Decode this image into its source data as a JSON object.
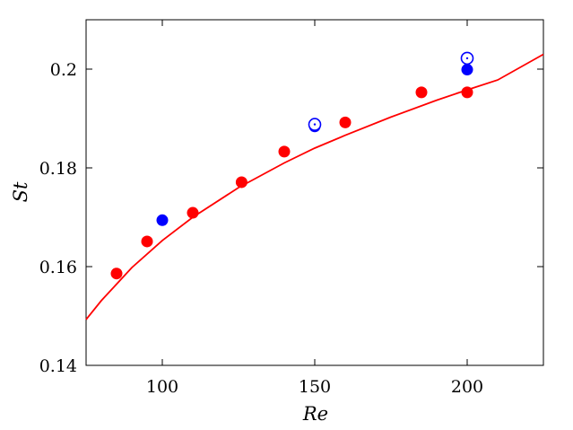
{
  "chart_data": {
    "type": "scatter",
    "xlabel": "Re",
    "ylabel": "St",
    "xlim": [
      75,
      225
    ],
    "ylim": [
      0.14,
      0.21
    ],
    "x_ticks": [
      100,
      150,
      200
    ],
    "x_tick_labels": [
      "100",
      "150",
      "200"
    ],
    "y_ticks": [
      0.14,
      0.16,
      0.18,
      0.2
    ],
    "y_tick_labels": [
      "0.14",
      "0.16",
      "0.18",
      "0.2"
    ],
    "grid": false,
    "series": [
      {
        "color": "#ff0000",
        "marker": "filled-circle",
        "points": [
          {
            "x": 85,
            "y": 0.1586
          },
          {
            "x": 95,
            "y": 0.1651
          },
          {
            "x": 110,
            "y": 0.1709
          },
          {
            "x": 126,
            "y": 0.1771
          },
          {
            "x": 140,
            "y": 0.1833
          },
          {
            "x": 160,
            "y": 0.1892
          },
          {
            "x": 185,
            "y": 0.1953
          },
          {
            "x": 200,
            "y": 0.1953
          }
        ]
      },
      {
        "color": "#0000ff",
        "marker": "filled-circle",
        "points": [
          {
            "x": 100,
            "y": 0.1694
          },
          {
            "x": 150,
            "y": 0.1884
          },
          {
            "x": 200,
            "y": 0.1999
          }
        ]
      },
      {
        "color": "#0000ff",
        "marker": "open-circle",
        "points": [
          {
            "x": 150,
            "y": 0.1888
          },
          {
            "x": 200,
            "y": 0.2022
          }
        ]
      },
      {
        "color": "#ff0000",
        "marker": "line",
        "points": [
          {
            "x": 75,
            "y": 0.1493
          },
          {
            "x": 80,
            "y": 0.1531
          },
          {
            "x": 90,
            "y": 0.1598
          },
          {
            "x": 100,
            "y": 0.1653
          },
          {
            "x": 110,
            "y": 0.17
          },
          {
            "x": 125,
            "y": 0.176
          },
          {
            "x": 140,
            "y": 0.181
          },
          {
            "x": 150,
            "y": 0.184
          },
          {
            "x": 160,
            "y": 0.1866
          },
          {
            "x": 175,
            "y": 0.1903
          },
          {
            "x": 190,
            "y": 0.1937
          },
          {
            "x": 200,
            "y": 0.1958
          },
          {
            "x": 210,
            "y": 0.1978
          },
          {
            "x": 225,
            "y": 0.203
          }
        ]
      }
    ]
  }
}
